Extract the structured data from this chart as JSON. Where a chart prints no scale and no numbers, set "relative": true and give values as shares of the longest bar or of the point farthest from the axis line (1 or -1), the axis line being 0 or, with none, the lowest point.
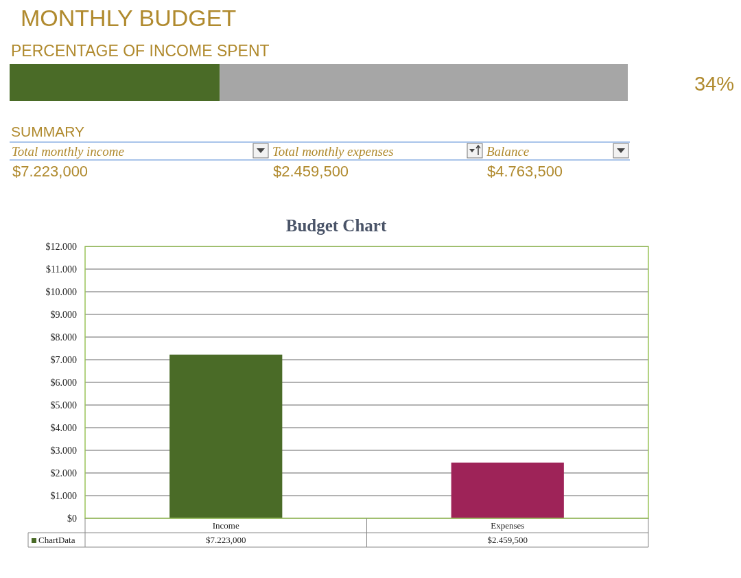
{
  "chart_data": [
    {
      "type": "bar",
      "title": "MONTHLY BUDGET",
      "subtitle": "PERCENTAGE OF INCOME SPENT",
      "orientation": "horizontal",
      "stacked": true,
      "relative": true,
      "categories": [
        null
      ],
      "tick_labels": false,
      "annotations": [
        "34%"
      ],
      "series": [
        {
          "color": "#4a6b27",
          "values": [
            0.34
          ]
        },
        {
          "color": "#a6a6a6",
          "values": [
            0.66
          ]
        }
      ]
    },
    {
      "type": "other",
      "title": "SUMMARY",
      "annotations": [
        "Total monthly income",
        "Total monthly expenses",
        "Balance",
        "$7.223,000",
        "$2.459,500",
        "$4.763,500"
      ]
    },
    {
      "type": "bar",
      "title": "Budget Chart",
      "categories": [
        "Income",
        "Expenses"
      ],
      "series": [
        {
          "name": "ChartData",
          "colors": [
            "#4a6b27",
            "#9e2358"
          ],
          "values": [
            7223,
            2459.5
          ],
          "value_labels": [
            "$7.223,000",
            "$2.459,500"
          ]
        }
      ],
      "ylim": [
        0,
        12000
      ],
      "yticks": [
        {
          "value": 0,
          "label": "$0"
        },
        {
          "value": 1000,
          "label": "$1.000"
        },
        {
          "value": 2000,
          "label": "$2.000"
        },
        {
          "value": 3000,
          "label": "$3.000"
        },
        {
          "value": 4000,
          "label": "$4.000"
        },
        {
          "value": 5000,
          "label": "$5.000"
        },
        {
          "value": 6000,
          "label": "$6.000"
        },
        {
          "value": 7000,
          "label": "$7.000"
        },
        {
          "value": 8000,
          "label": "$8.000"
        },
        {
          "value": 9000,
          "label": "$9.000"
        },
        {
          "value": 10000,
          "label": "$10.000"
        },
        {
          "value": 11000,
          "label": "$11.000"
        },
        {
          "value": 12000,
          "label": "$12.000"
        }
      ],
      "grid": "y",
      "legend": "bottom left"
    }
  ]
}
